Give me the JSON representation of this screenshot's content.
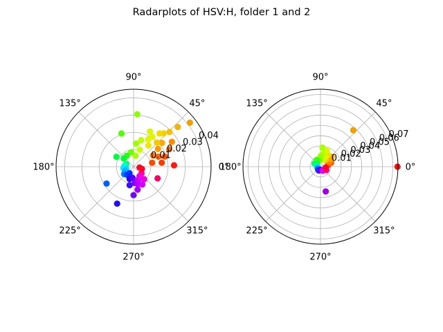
{
  "figure": {
    "title": "Radarplots of HSV:H, folder 1 and 2"
  },
  "chart_data": [
    {
      "type": "scatter",
      "projection": "polar",
      "title": "",
      "rlim": [
        0,
        0.045
      ],
      "r_ticks": [
        0.01,
        0.02,
        0.03,
        0.04
      ],
      "r_tick_labels": [
        "0.01",
        "0.02",
        "0.03",
        "0.04"
      ],
      "theta_tick_labels": [
        "0°",
        "45°",
        "90°",
        "135°",
        "180°",
        "225°",
        "270°",
        "315°"
      ],
      "grid": true,
      "colormap": "hsv (point color = angle)",
      "points": [
        {
          "theta_deg": 2,
          "r": 0.0235,
          "color": "#ff1a10"
        },
        {
          "theta_deg": 8,
          "r": 0.0165,
          "color": "#ff3a00"
        },
        {
          "theta_deg": 12,
          "r": 0.011,
          "color": "#ff4a00"
        },
        {
          "theta_deg": 18,
          "r": 0.019,
          "color": "#ff5500"
        },
        {
          "theta_deg": 22,
          "r": 0.0155,
          "color": "#ff6600"
        },
        {
          "theta_deg": 26,
          "r": 0.023,
          "color": "#ff7500"
        },
        {
          "theta_deg": 30,
          "r": 0.013,
          "color": "#ff8000"
        },
        {
          "theta_deg": 33,
          "r": 0.0265,
          "color": "#ff8c00"
        },
        {
          "theta_deg": 36,
          "r": 0.0175,
          "color": "#ff9900"
        },
        {
          "theta_deg": 38,
          "r": 0.0415,
          "color": "#f5a000"
        },
        {
          "theta_deg": 40,
          "r": 0.0215,
          "color": "#ffa600"
        },
        {
          "theta_deg": 42,
          "r": 0.0345,
          "color": "#f7b100"
        },
        {
          "theta_deg": 44,
          "r": 0.029,
          "color": "#f5c000"
        },
        {
          "theta_deg": 46,
          "r": 0.0195,
          "color": "#f5c800"
        },
        {
          "theta_deg": 48,
          "r": 0.026,
          "color": "#f2d000"
        },
        {
          "theta_deg": 52,
          "r": 0.0245,
          "color": "#eedc00"
        },
        {
          "theta_deg": 55,
          "r": 0.015,
          "color": "#ece800"
        },
        {
          "theta_deg": 58,
          "r": 0.0205,
          "color": "#e8f000"
        },
        {
          "theta_deg": 62,
          "r": 0.018,
          "color": "#e0f500"
        },
        {
          "theta_deg": 65,
          "r": 0.0225,
          "color": "#d6f800"
        },
        {
          "theta_deg": 70,
          "r": 0.0105,
          "color": "#c8ff00"
        },
        {
          "theta_deg": 74,
          "r": 0.016,
          "color": "#bcff00"
        },
        {
          "theta_deg": 80,
          "r": 0.0065,
          "color": "#a8ff00"
        },
        {
          "theta_deg": 84,
          "r": 0.0135,
          "color": "#9aff00"
        },
        {
          "theta_deg": 86,
          "r": 0.0305,
          "color": "#90ff00"
        },
        {
          "theta_deg": 100,
          "r": 0.0085,
          "color": "#6aff00"
        },
        {
          "theta_deg": 110,
          "r": 0.0205,
          "color": "#50ff00"
        },
        {
          "theta_deg": 122,
          "r": 0.0075,
          "color": "#28ff10"
        },
        {
          "theta_deg": 140,
          "r": 0.0075,
          "color": "#00ff30"
        },
        {
          "theta_deg": 150,
          "r": 0.0115,
          "color": "#00ff40"
        },
        {
          "theta_deg": 160,
          "r": 0.0045,
          "color": "#00ff70"
        },
        {
          "theta_deg": 170,
          "r": 0.005,
          "color": "#00ffa0"
        },
        {
          "theta_deg": 178,
          "r": 0.0055,
          "color": "#00ffd0"
        },
        {
          "theta_deg": 188,
          "r": 0.006,
          "color": "#00f0ff"
        },
        {
          "theta_deg": 196,
          "r": 0.0045,
          "color": "#00d8ff"
        },
        {
          "theta_deg": 205,
          "r": 0.0055,
          "color": "#00b8ff"
        },
        {
          "theta_deg": 212,
          "r": 0.0185,
          "color": "#0060ff"
        },
        {
          "theta_deg": 218,
          "r": 0.007,
          "color": "#0080ff"
        },
        {
          "theta_deg": 230,
          "r": 0.006,
          "color": "#0040ff"
        },
        {
          "theta_deg": 238,
          "r": 0.0045,
          "color": "#0030ff"
        },
        {
          "theta_deg": 246,
          "r": 0.0235,
          "color": "#1c10ff"
        },
        {
          "theta_deg": 252,
          "r": 0.0075,
          "color": "#2800ff"
        },
        {
          "theta_deg": 258,
          "r": 0.011,
          "color": "#3a10ff"
        },
        {
          "theta_deg": 264,
          "r": 0.0065,
          "color": "#5500ff"
        },
        {
          "theta_deg": 270,
          "r": 0.0165,
          "color": "#6a10f0"
        },
        {
          "theta_deg": 274,
          "r": 0.0095,
          "color": "#8800ff"
        },
        {
          "theta_deg": 280,
          "r": 0.0135,
          "color": "#a600ff"
        },
        {
          "theta_deg": 284,
          "r": 0.0105,
          "color": "#b400ff"
        },
        {
          "theta_deg": 290,
          "r": 0.008,
          "color": "#c600ff"
        },
        {
          "theta_deg": 296,
          "r": 0.0115,
          "color": "#d800ff"
        },
        {
          "theta_deg": 302,
          "r": 0.0065,
          "color": "#e600ff"
        },
        {
          "theta_deg": 310,
          "r": 0.0095,
          "color": "#f000e0"
        },
        {
          "theta_deg": 320,
          "r": 0.006,
          "color": "#ff00c0"
        },
        {
          "theta_deg": 334,
          "r": 0.0155,
          "color": "#ff0060"
        },
        {
          "theta_deg": 345,
          "r": 0.005,
          "color": "#ff0030"
        },
        {
          "theta_deg": 352,
          "r": 0.0035,
          "color": "#ff0820"
        }
      ]
    },
    {
      "type": "scatter",
      "projection": "polar",
      "title": "",
      "rlim": [
        0,
        0.075
      ],
      "r_ticks": [
        0.01,
        0.02,
        0.03,
        0.04,
        0.05,
        0.06,
        0.07
      ],
      "r_tick_labels": [
        "0.01",
        "0.02",
        "0.03",
        "0.04",
        "0.05",
        "0.06",
        "0.07"
      ],
      "theta_tick_labels": [
        "0°",
        "45°",
        "90°",
        "135°",
        "180°",
        "225°",
        "270°",
        "315°"
      ],
      "grid": true,
      "colormap": "hsv (point color = angle)",
      "points": [
        {
          "theta_deg": 0,
          "r": 0.0745,
          "color": "#ff1010"
        },
        {
          "theta_deg": 12,
          "r": 0.0075,
          "color": "#ff4000"
        },
        {
          "theta_deg": 20,
          "r": 0.011,
          "color": "#ff6000"
        },
        {
          "theta_deg": 28,
          "r": 0.0095,
          "color": "#ff8000"
        },
        {
          "theta_deg": 38,
          "r": 0.0125,
          "color": "#ffa000"
        },
        {
          "theta_deg": 42,
          "r": 0.0145,
          "color": "#f5b000"
        },
        {
          "theta_deg": 48,
          "r": 0.0475,
          "color": "#f2a000"
        },
        {
          "theta_deg": 52,
          "r": 0.0085,
          "color": "#f5c800"
        },
        {
          "theta_deg": 58,
          "r": 0.0135,
          "color": "#f0e000"
        },
        {
          "theta_deg": 63,
          "r": 0.0105,
          "color": "#e8f000"
        },
        {
          "theta_deg": 68,
          "r": 0.0165,
          "color": "#dcf800"
        },
        {
          "theta_deg": 72,
          "r": 0.0075,
          "color": "#ccff00"
        },
        {
          "theta_deg": 78,
          "r": 0.0125,
          "color": "#b8ff00"
        },
        {
          "theta_deg": 84,
          "r": 0.0185,
          "color": "#a8ff00"
        },
        {
          "theta_deg": 88,
          "r": 0.0105,
          "color": "#9cff00"
        },
        {
          "theta_deg": 100,
          "r": 0.006,
          "color": "#70ff00"
        },
        {
          "theta_deg": 118,
          "r": 0.0075,
          "color": "#40ff00"
        },
        {
          "theta_deg": 140,
          "r": 0.0045,
          "color": "#00ff40"
        },
        {
          "theta_deg": 152,
          "r": 0.0065,
          "color": "#00ff60"
        },
        {
          "theta_deg": 172,
          "r": 0.0035,
          "color": "#00ffb0"
        },
        {
          "theta_deg": 195,
          "r": 0.003,
          "color": "#00c0ff"
        },
        {
          "theta_deg": 225,
          "r": 0.0035,
          "color": "#0060ff"
        },
        {
          "theta_deg": 246,
          "r": 0.004,
          "color": "#2020ff"
        },
        {
          "theta_deg": 268,
          "r": 0.003,
          "color": "#6000ff"
        },
        {
          "theta_deg": 282,
          "r": 0.0245,
          "color": "#a000f0"
        },
        {
          "theta_deg": 300,
          "r": 0.0045,
          "color": "#e000ff"
        },
        {
          "theta_deg": 330,
          "r": 0.0065,
          "color": "#ff0090"
        },
        {
          "theta_deg": 350,
          "r": 0.005,
          "color": "#ff0030"
        }
      ]
    }
  ]
}
